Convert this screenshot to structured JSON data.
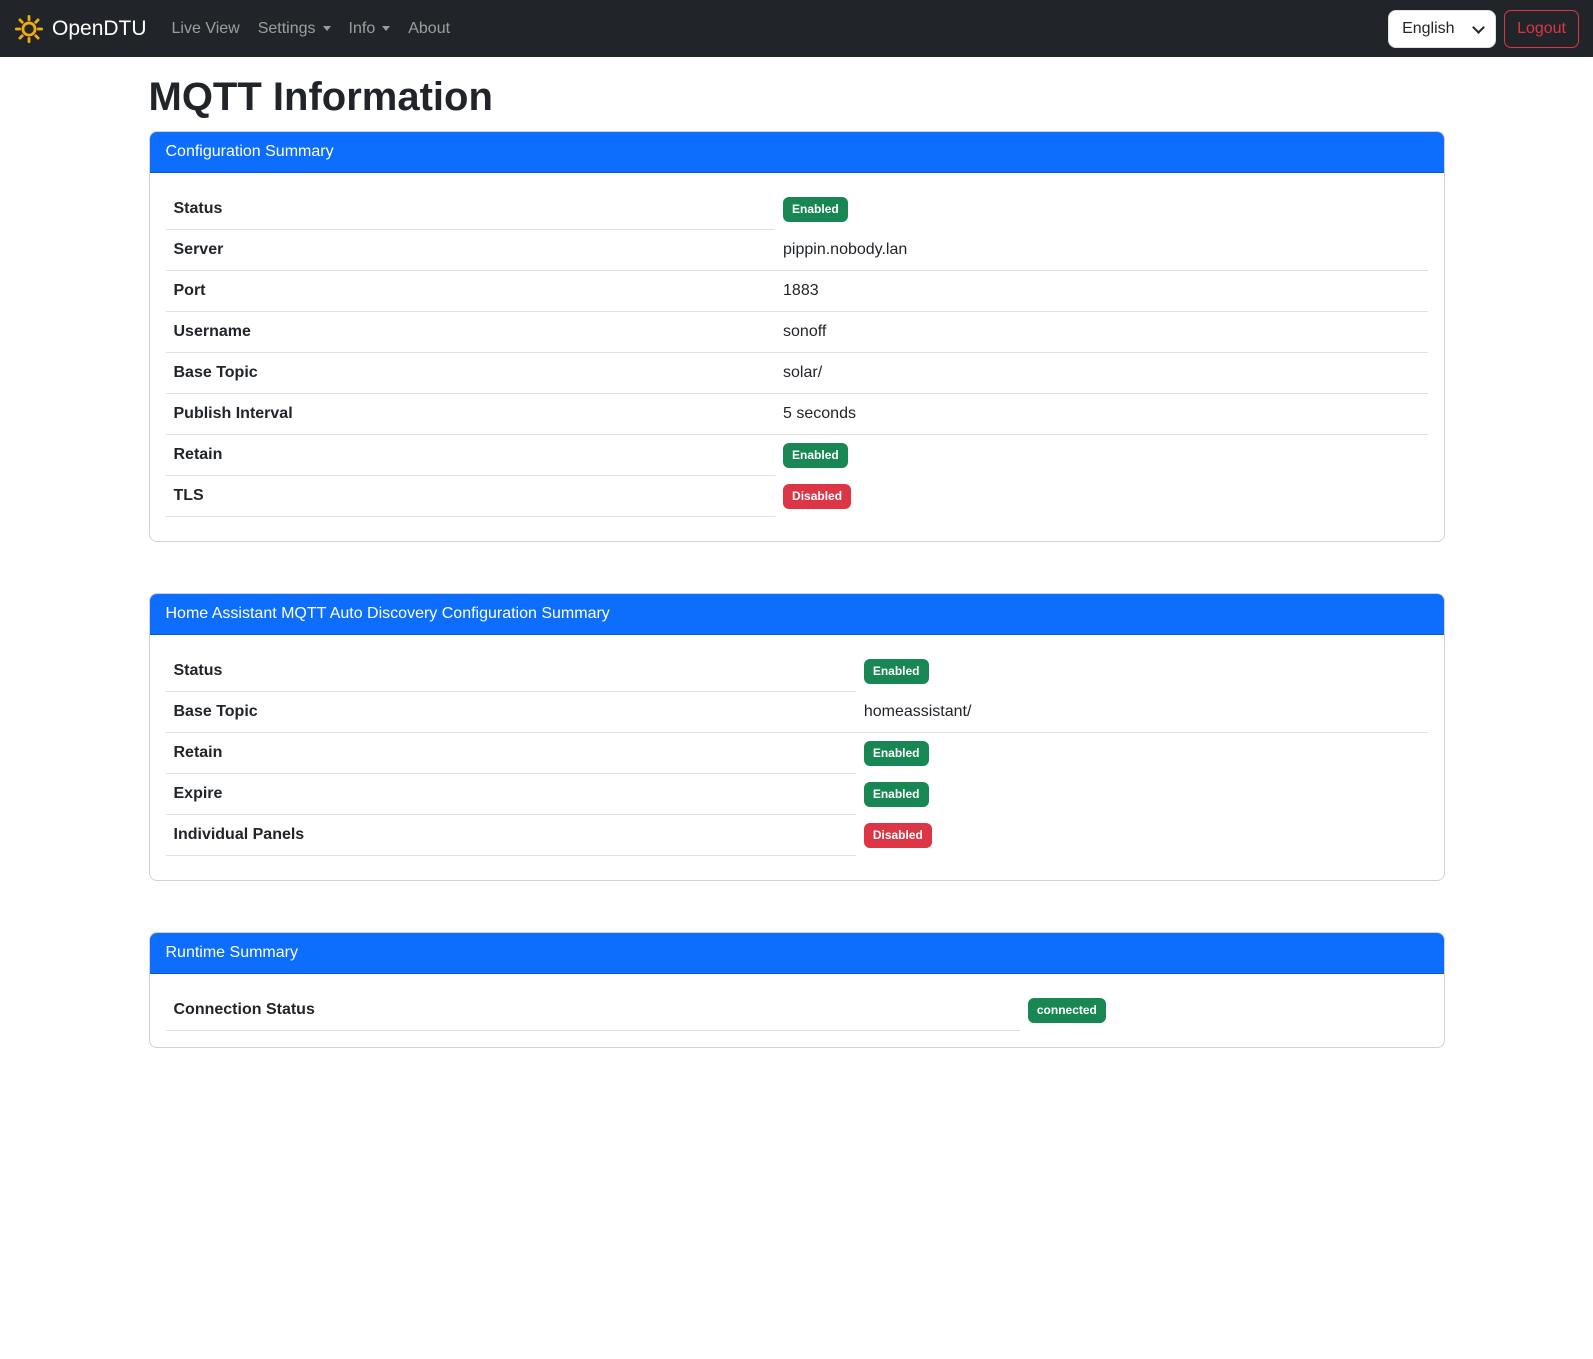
{
  "navbar": {
    "brand": "OpenDTU",
    "items": [
      {
        "label": "Live View",
        "dropdown": false
      },
      {
        "label": "Settings",
        "dropdown": true
      },
      {
        "label": "Info",
        "dropdown": true
      },
      {
        "label": "About",
        "dropdown": false
      }
    ],
    "language": "English",
    "logout_label": "Logout"
  },
  "page": {
    "title": "MQTT Information"
  },
  "cards": [
    {
      "header": "Configuration Summary",
      "rows": [
        {
          "label": "Status",
          "type": "badge",
          "value": "Enabled",
          "variant": "success"
        },
        {
          "label": "Server",
          "type": "text",
          "value": "pippin.nobody.lan"
        },
        {
          "label": "Port",
          "type": "text",
          "value": "1883"
        },
        {
          "label": "Username",
          "type": "text",
          "value": "sonoff"
        },
        {
          "label": "Base Topic",
          "type": "text",
          "value": "solar/"
        },
        {
          "label": "Publish Interval",
          "type": "text",
          "value": "5 seconds"
        },
        {
          "label": "Retain",
          "type": "badge",
          "value": "Enabled",
          "variant": "success"
        },
        {
          "label": "TLS",
          "type": "badge",
          "value": "Disabled",
          "variant": "danger"
        }
      ]
    },
    {
      "header": "Home Assistant MQTT Auto Discovery Configuration Summary",
      "rows": [
        {
          "label": "Status",
          "type": "badge",
          "value": "Enabled",
          "variant": "success"
        },
        {
          "label": "Base Topic",
          "type": "text",
          "value": "homeassistant/"
        },
        {
          "label": "Retain",
          "type": "badge",
          "value": "Enabled",
          "variant": "success"
        },
        {
          "label": "Expire",
          "type": "badge",
          "value": "Enabled",
          "variant": "success"
        },
        {
          "label": "Individual Panels",
          "type": "badge",
          "value": "Disabled",
          "variant": "danger"
        }
      ]
    },
    {
      "header": "Runtime Summary",
      "rows": [
        {
          "label": "Connection Status",
          "type": "badge",
          "value": "connected",
          "variant": "success"
        }
      ]
    }
  ],
  "colors": {
    "primary": "#0d6efd",
    "success": "#198754",
    "danger": "#dc3545",
    "navbar_bg": "#212529",
    "brand_icon": "#f0ad0e"
  }
}
